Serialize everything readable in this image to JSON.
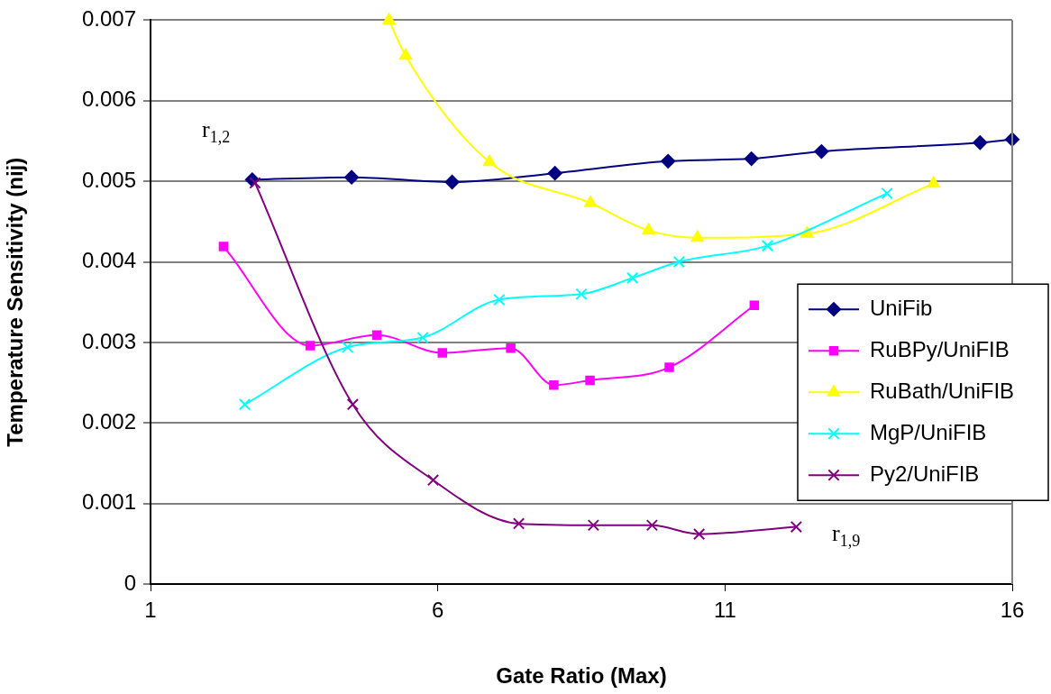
{
  "chart_data": {
    "type": "line",
    "xlabel": "Gate Ratio (Max)",
    "ylabel": "Temperature Sensitivity (nij)",
    "xlim": [
      1,
      16
    ],
    "xticks": [
      1,
      6,
      11,
      16
    ],
    "ylim": [
      0,
      0.007
    ],
    "yticks": [
      0,
      0.001,
      0.002,
      0.003,
      0.004,
      0.005,
      0.006,
      0.007
    ],
    "grid": "y",
    "legend": "right",
    "line_style": "solid",
    "series": [
      {
        "name": "UniFib",
        "color": "#000080",
        "marker": "diamond",
        "x": [
          2.77,
          4.5,
          6.25,
          8.04,
          10.01,
          11.46,
          12.68,
          15.44,
          16
        ],
        "values": [
          0.00502,
          0.00505,
          0.00499,
          0.0051,
          0.00525,
          0.00528,
          0.00537,
          0.00548,
          0.00552
        ]
      },
      {
        "name": "RuBPy/UniFIB",
        "color": "#ff00ff",
        "marker": "square",
        "x": [
          2.27,
          3.78,
          4.94,
          6.08,
          7.27,
          8.02,
          8.65,
          10.03,
          11.51
        ],
        "values": [
          0.00419,
          0.00296,
          0.00309,
          0.00287,
          0.00293,
          0.00247,
          0.00253,
          0.00269,
          0.00346
        ]
      },
      {
        "name": "RuBath/UniFIB",
        "color": "#ffff00",
        "marker": "triangle",
        "x": [
          5.15,
          5.44,
          6.9,
          8.66,
          9.67,
          10.52,
          12.43,
          14.63
        ],
        "values": [
          0.007,
          0.00656,
          0.00524,
          0.00473,
          0.00439,
          0.0043,
          0.00435,
          0.00497
        ]
      },
      {
        "name": "MgP/UniFIB",
        "color": "#00ffff",
        "marker": "cross",
        "x": [
          2.64,
          4.43,
          5.74,
          7.07,
          8.5,
          9.39,
          10.2,
          11.74,
          13.82
        ],
        "values": [
          0.00223,
          0.00294,
          0.00306,
          0.00353,
          0.0036,
          0.0038,
          0.004,
          0.0042,
          0.00485
        ]
      },
      {
        "name": "Py2/UniFIB",
        "color": "#800080",
        "marker": "cross",
        "x": [
          2.82,
          4.52,
          5.92,
          7.41,
          8.71,
          9.73,
          10.55,
          12.24
        ],
        "values": [
          0.00498,
          0.00223,
          0.00129,
          0.00075,
          0.00073,
          0.00073,
          0.00062,
          0.00071
        ]
      }
    ],
    "annotations": [
      "r$_{1,2}$",
      "r$_{1,9}$"
    ]
  }
}
